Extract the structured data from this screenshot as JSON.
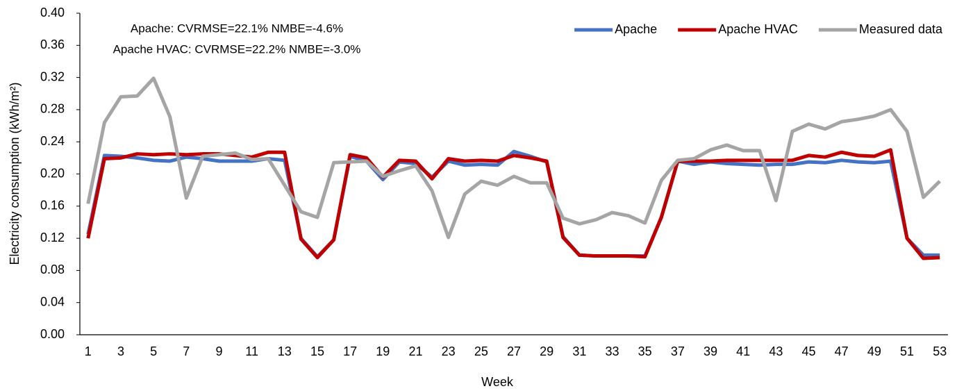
{
  "chart_data": {
    "type": "line",
    "xlabel": "Week",
    "ylabel": "Electricity consumption (kWh/m²)",
    "annotations": [
      "Apache: CVRMSE=22.1% NMBE=-4.6%",
      "Apache HVAC: CVRMSE=22.2% NMBE=-3.0%"
    ],
    "categories": [
      "1",
      null,
      "3",
      null,
      "5",
      null,
      "7",
      null,
      "9",
      null,
      "11",
      null,
      "13",
      null,
      "15",
      null,
      "17",
      null,
      "19",
      null,
      "21",
      null,
      "23",
      null,
      "25",
      null,
      "27",
      null,
      "29",
      null,
      "31",
      null,
      "33",
      null,
      "35",
      null,
      "37",
      null,
      "39",
      null,
      "41",
      null,
      "43",
      null,
      "45",
      null,
      "47",
      null,
      "49",
      null,
      "51",
      null,
      "53"
    ],
    "ylim": [
      0,
      0.4
    ],
    "yticks": [
      {
        "value": 0,
        "label": "0.00"
      },
      {
        "value": 0.04,
        "label": "0.04"
      },
      {
        "value": 0.08,
        "label": "0.08"
      },
      {
        "value": 0.12,
        "label": "0.12"
      },
      {
        "value": 0.16,
        "label": "0.16"
      },
      {
        "value": 0.2,
        "label": "0.20"
      },
      {
        "value": 0.24,
        "label": "0.24"
      },
      {
        "value": 0.28,
        "label": "0.28"
      },
      {
        "value": 0.32,
        "label": "0.32"
      },
      {
        "value": 0.36,
        "label": "0.36"
      },
      {
        "value": 0.4,
        "label": "0.40"
      }
    ],
    "grid": false,
    "legend": "top-right",
    "series": [
      {
        "name": "Apache",
        "color": "#4472c4",
        "values": [
          0.125,
          0.223,
          0.222,
          0.22,
          0.217,
          0.216,
          0.221,
          0.219,
          0.216,
          0.216,
          0.216,
          0.219,
          0.217,
          0.12,
          0.097,
          0.118,
          0.222,
          0.216,
          0.193,
          0.215,
          0.213,
          0.196,
          0.216,
          0.211,
          0.212,
          0.211,
          0.228,
          0.222,
          0.215,
          0.122,
          0.099,
          0.098,
          0.098,
          0.098,
          0.098,
          0.146,
          0.216,
          0.212,
          0.215,
          0.213,
          0.212,
          0.211,
          0.212,
          0.212,
          0.215,
          0.214,
          0.217,
          0.215,
          0.214,
          0.216,
          0.12,
          0.099,
          0.099
        ]
      },
      {
        "name": "Apache HVAC",
        "color": "#c00000",
        "values": [
          0.12,
          0.219,
          0.22,
          0.225,
          0.224,
          0.225,
          0.224,
          0.225,
          0.225,
          0.223,
          0.221,
          0.227,
          0.227,
          0.119,
          0.096,
          0.118,
          0.224,
          0.22,
          0.196,
          0.217,
          0.216,
          0.194,
          0.219,
          0.216,
          0.217,
          0.216,
          0.223,
          0.22,
          0.216,
          0.121,
          0.099,
          0.098,
          0.098,
          0.098,
          0.097,
          0.146,
          0.216,
          0.216,
          0.216,
          0.217,
          0.217,
          0.217,
          0.217,
          0.217,
          0.223,
          0.221,
          0.227,
          0.223,
          0.222,
          0.23,
          0.12,
          0.095,
          0.096
        ]
      },
      {
        "name": "Measured data",
        "color": "#a5a5a5",
        "values": [
          0.163,
          0.264,
          0.296,
          0.297,
          0.319,
          0.271,
          0.17,
          0.222,
          0.224,
          0.226,
          0.218,
          0.219,
          0.186,
          0.153,
          0.146,
          0.214,
          0.215,
          0.216,
          0.197,
          0.204,
          0.21,
          0.179,
          0.121,
          0.175,
          0.191,
          0.186,
          0.197,
          0.189,
          0.189,
          0.145,
          0.138,
          0.143,
          0.152,
          0.148,
          0.139,
          0.192,
          0.217,
          0.219,
          0.23,
          0.236,
          0.229,
          0.229,
          0.167,
          0.253,
          0.262,
          0.256,
          0.265,
          0.268,
          0.272,
          0.28,
          0.253,
          0.171,
          0.191
        ]
      }
    ]
  }
}
